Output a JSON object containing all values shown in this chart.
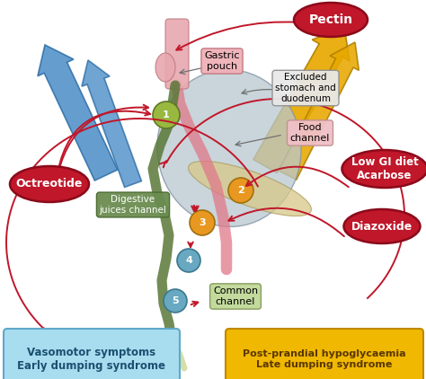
{
  "background_color": "#ffffff",
  "labels": {
    "pectin": "Pectin",
    "gastric_pouch": "Gastric\npouch",
    "excluded": "Excluded\nstomach and\nduodenum",
    "food_channel": "Food\nchannel",
    "low_gi": "Low GI diet\nAcarbose",
    "octreotide": "Octreotide",
    "digestive": "Digestive\njuices channel",
    "diazoxide": "Diazoxide",
    "common_channel": "Common\nchannel",
    "vasomotor": "Vasomotor symptoms\nEarly dumping syndrome",
    "postprandial": "Post-prandial hypoglycaemia\nLate dumping syndrome"
  },
  "colors": {
    "red_ellipse_face": "#c0172a",
    "red_ellipse_edge": "#8b0a1a",
    "gastric_pouch_box": "#f0b0b8",
    "excluded_box": "#e8e8e8",
    "food_box": "#f0c0c8",
    "digestive_box_face": "#6a8c50",
    "digestive_box_edge": "#4a6a30",
    "common_box_face": "#c0d898",
    "common_box_edge": "#809858",
    "vasomotor_face": "#a8ddf0",
    "vasomotor_edge": "#60a8c8",
    "vasomotor_text": "#1a5070",
    "postprandial_face": "#f0b800",
    "postprandial_edge": "#c08800",
    "postprandial_text": "#5a3800",
    "blue_arrow": "#5090c8",
    "blue_arrow_edge": "#3070a8",
    "gold_arrow": "#e8a800",
    "gold_arrow_edge": "#b08000",
    "red_arrow": "#c0172a",
    "stomach_face": "#b8c8d0",
    "stomach_edge": "#8090a0",
    "pancreas_face": "#d8c888",
    "pancreas_edge": "#a89858",
    "pouch_face": "#e8a8b0",
    "pouch_edge": "#c07880",
    "tube_pink": "#e07888",
    "tube_green": "#5a7838",
    "tube_light": "#c8d890",
    "circle1_face": "#98b840",
    "circle2_face": "#e89820",
    "circle3_face": "#e89820",
    "circle4_face": "#68a8c0",
    "circle5_face": "#68a8c0",
    "circle_text": "white",
    "gray_arrow": "#909090"
  }
}
